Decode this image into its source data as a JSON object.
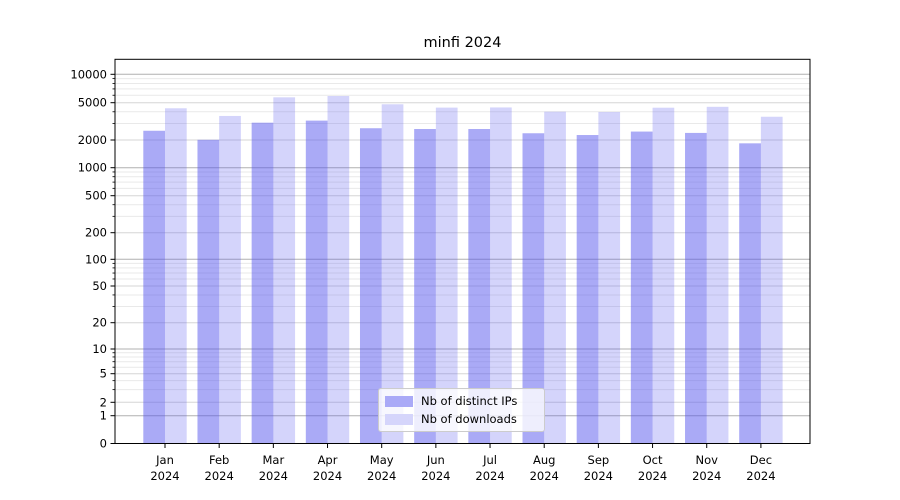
{
  "title": "minfi 2024",
  "chart_data": {
    "type": "bar",
    "title": "minfi 2024",
    "categories": [
      "Jan",
      "Feb",
      "Mar",
      "Apr",
      "May",
      "Jun",
      "Jul",
      "Aug",
      "Sep",
      "Oct",
      "Nov",
      "Dec"
    ],
    "category_year": "2024",
    "series": [
      {
        "name": "Nb of distinct IPs",
        "color": "#5555ee",
        "fill_opacity": 0.5,
        "values": [
          2510,
          2010,
          3060,
          3220,
          2670,
          2620,
          2620,
          2360,
          2260,
          2460,
          2380,
          1840
        ]
      },
      {
        "name": "Nb of downloads",
        "color": "#5555ee",
        "fill_opacity": 0.25,
        "values": [
          4360,
          3610,
          5700,
          5890,
          4810,
          4430,
          4450,
          4010,
          3980,
          4420,
          4520,
          3540
        ]
      }
    ],
    "xlabel": "",
    "ylabel": "",
    "yscale": "symlog",
    "ylim": [
      0,
      14000
    ],
    "ytick_values": [
      0,
      1,
      2,
      5,
      10,
      20,
      50,
      100,
      200,
      500,
      1000,
      2000,
      5000,
      10000
    ],
    "grid": true,
    "grid_major_color": "#b0b0b0",
    "grid_sub_color": "#d6d6d6",
    "grid_minor_color": "#e9e9e9",
    "axis_color": "#000000",
    "legend_position": "lower center",
    "legend_border_color": "#cccccc"
  }
}
